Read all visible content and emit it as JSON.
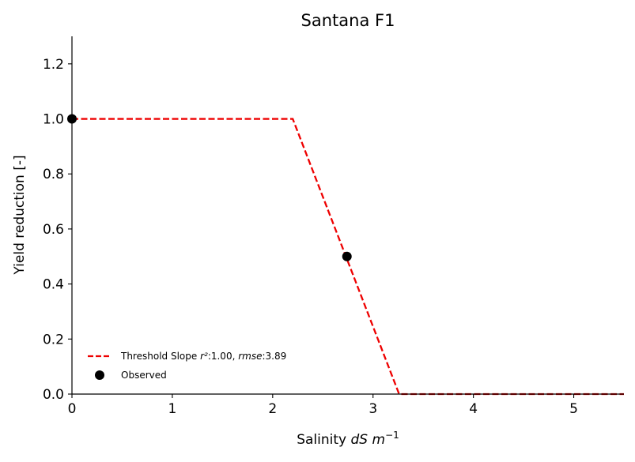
{
  "chart_data": {
    "type": "line",
    "title": "Santana F1",
    "xlabel": {
      "prefix": "Salinity ",
      "var": "dS m",
      "sup": "−1"
    },
    "ylabel": "Yield reduction [-]",
    "xlim": [
      0,
      5.5
    ],
    "ylim": [
      0,
      1.3
    ],
    "xticks": [
      0,
      1,
      2,
      3,
      4,
      5
    ],
    "yticks": [
      0.0,
      0.2,
      0.4,
      0.6,
      0.8,
      1.0,
      1.2
    ],
    "grid": false,
    "legend_position": "lower-left",
    "series": [
      {
        "name": "Threshold Slope",
        "label_parts": {
          "prefix": "Threshold Slope ",
          "r2": "r²",
          "r2_value": ":1.00, ",
          "rmse": "rmse",
          "rmse_value": ":3.89"
        },
        "kind": "line",
        "style": "dashed",
        "color": "#ee0000",
        "x": [
          0,
          2.2,
          3.26,
          5.5
        ],
        "y": [
          1.0,
          1.0,
          0.0,
          0.0
        ]
      },
      {
        "name": "Observed",
        "kind": "scatter",
        "color": "#000000",
        "x": [
          0,
          2.74
        ],
        "y": [
          1.0,
          0.5
        ]
      }
    ]
  }
}
